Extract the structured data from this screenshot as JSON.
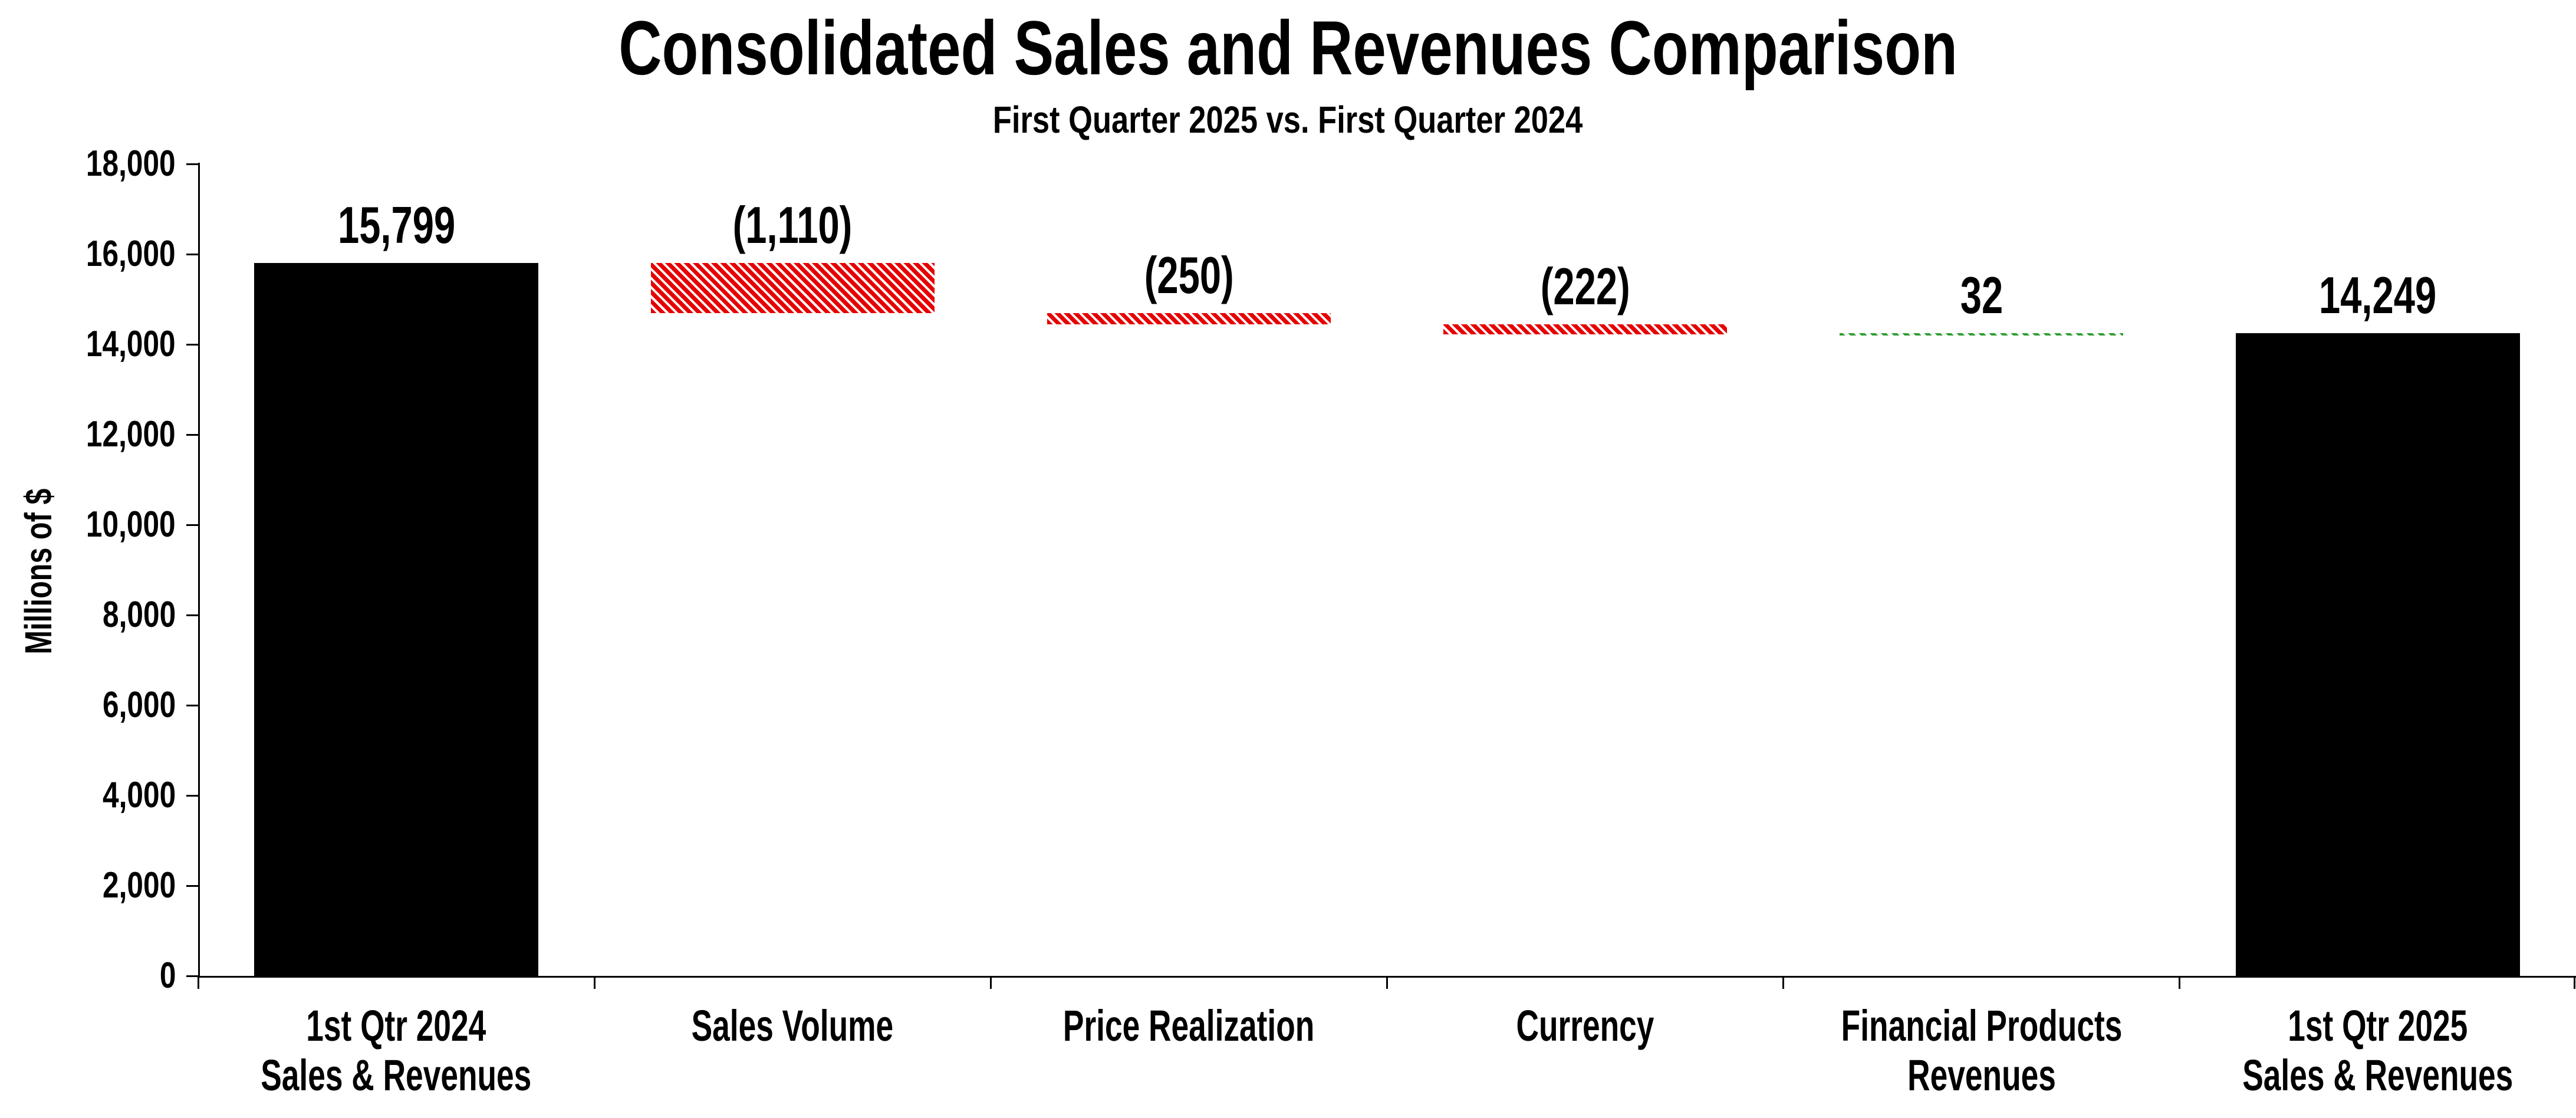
{
  "page": {
    "background": "#ffffff"
  },
  "chart_data": {
    "type": "bar",
    "subtype": "waterfall",
    "title": "Consolidated Sales and Revenues Comparison",
    "subtitle": "First Quarter 2025 vs. First Quarter 2024",
    "xlabel": "",
    "ylabel": "Millions of $",
    "ylim": [
      0,
      18000
    ],
    "ytick_step": 2000,
    "ytick_labels": [
      "0",
      "2,000",
      "4,000",
      "6,000",
      "8,000",
      "10,000",
      "12,000",
      "14,000",
      "16,000",
      "18,000"
    ],
    "grid": false,
    "legend": null,
    "categories": [
      {
        "label_lines": [
          "1st Qtr 2024",
          "Sales & Revenues"
        ],
        "start": 0,
        "end": 15799,
        "value": 15799,
        "value_label": "15,799",
        "style": "black-solid"
      },
      {
        "label_lines": [
          "Sales Volume"
        ],
        "start": 14689,
        "end": 15799,
        "value": -1110,
        "value_label": "(1,110)",
        "style": "red-hatch"
      },
      {
        "label_lines": [
          "Price Realization"
        ],
        "start": 14439,
        "end": 14689,
        "value": -250,
        "value_label": "(250)",
        "style": "red-hatch"
      },
      {
        "label_lines": [
          "Currency"
        ],
        "start": 14217,
        "end": 14439,
        "value": -222,
        "value_label": "(222)",
        "style": "red-hatch"
      },
      {
        "label_lines": [
          "Financial Products",
          "Revenues"
        ],
        "start": 14217,
        "end": 14249,
        "value": 32,
        "value_label": "32",
        "style": "green-dash"
      },
      {
        "label_lines": [
          "1st Qtr 2025",
          "Sales & Revenues"
        ],
        "start": 0,
        "end": 14249,
        "value": 14249,
        "value_label": "14,249",
        "style": "black-solid"
      }
    ],
    "colors": {
      "bar_black": "#000000",
      "decrease_red": "#e60000",
      "increase_green": "#2e9e30",
      "axis": "#000000",
      "text": "#000000"
    }
  }
}
